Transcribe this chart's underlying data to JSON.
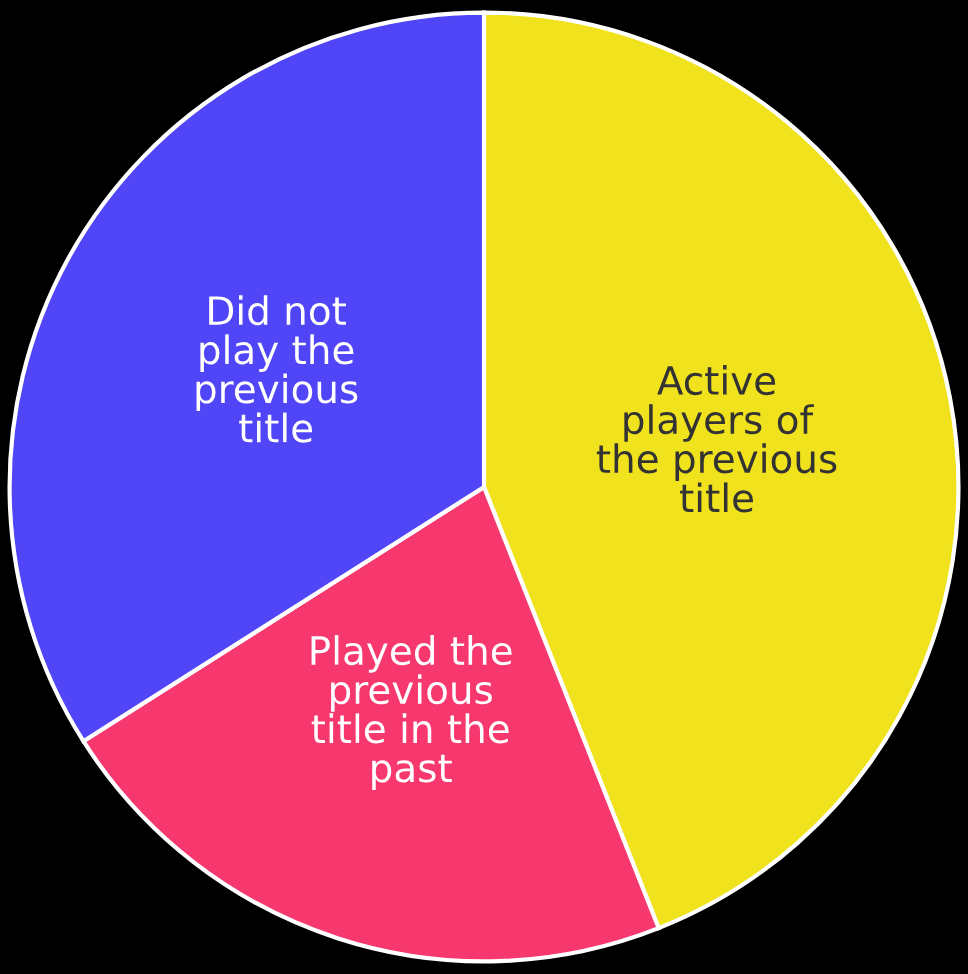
{
  "chart_data": {
    "type": "pie",
    "categories": [
      "Active\nplayers of\nthe previous\ntitle",
      "Played the\nprevious\ntitle in the\npast",
      "Did not\nplay the\nprevious\ntitle"
    ],
    "values": [
      44,
      22,
      34
    ],
    "colors": [
      "#f0e21c",
      "#f7386e",
      "#5046f7"
    ],
    "legend": false
  }
}
